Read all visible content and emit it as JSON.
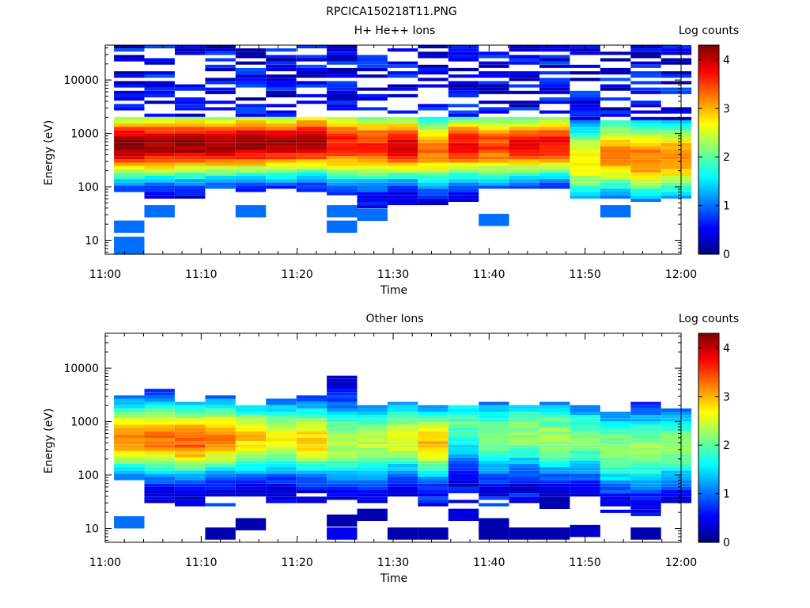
{
  "figure_title": "RPCICA150218T11.PNG",
  "chart_data": [
    {
      "type": "heatmap",
      "title": "H+ He++ Ions",
      "xlabel": "Time",
      "ylabel": "Energy (eV)",
      "colorbar_label": "Log counts",
      "colorbar_ticks": [
        "0",
        "1",
        "2",
        "3",
        "4"
      ],
      "colorbar_range": [
        0,
        4.3
      ],
      "colormap": "jet",
      "x_ticks": [
        "11:00",
        "11:10",
        "11:20",
        "11:30",
        "11:40",
        "11:50",
        "12:00"
      ],
      "xlim": [
        "11:00",
        "12:00"
      ],
      "y_ticks": [
        "10",
        "100",
        "1000",
        "10000"
      ],
      "ylim": [
        5.5,
        45000
      ],
      "y_scale": "log",
      "time_bins": [
        "11:02:30",
        "11:05:40",
        "11:08:50",
        "11:12:00",
        "11:15:10",
        "11:18:20",
        "11:21:30",
        "11:24:40",
        "11:27:50",
        "11:31:00",
        "11:34:10",
        "11:37:20",
        "11:40:30",
        "11:43:40",
        "11:46:50",
        "11:50:00",
        "11:53:10",
        "11:56:20",
        "11:59:30"
      ],
      "profiles": [
        {
          "peak_e": 600,
          "peak_log": 4.3,
          "width": 0.9,
          "hi_e": 1900,
          "lo_e": 75,
          "low_extra": [
            [
              18,
              1
            ],
            [
              7,
              1
            ],
            [
              9,
              1
            ]
          ]
        },
        {
          "peak_e": 600,
          "peak_log": 4.2,
          "width": 0.9,
          "hi_e": 1900,
          "lo_e": 50,
          "low_extra": [
            [
              35,
              1
            ]
          ]
        },
        {
          "peak_e": 620,
          "peak_log": 4.2,
          "width": 0.9,
          "hi_e": 1900,
          "lo_e": 60,
          "low_extra": []
        },
        {
          "peak_e": 620,
          "peak_log": 4.1,
          "width": 0.9,
          "hi_e": 1900,
          "lo_e": 90,
          "low_extra": []
        },
        {
          "peak_e": 650,
          "peak_log": 4.2,
          "width": 0.9,
          "hi_e": 1950,
          "lo_e": 80,
          "low_extra": [
            [
              35,
              1
            ]
          ]
        },
        {
          "peak_e": 650,
          "peak_log": 4.1,
          "width": 0.9,
          "hi_e": 1950,
          "lo_e": 95,
          "low_extra": []
        },
        {
          "peak_e": 700,
          "peak_log": 4.2,
          "width": 0.9,
          "hi_e": 2000,
          "lo_e": 75,
          "low_extra": []
        },
        {
          "peak_e": 650,
          "peak_log": 3.7,
          "width": 1.0,
          "hi_e": 2000,
          "lo_e": 70,
          "low_extra": [
            [
              35,
              1
            ],
            [
              18,
              1
            ]
          ]
        },
        {
          "peak_e": 600,
          "peak_log": 3.6,
          "width": 1.0,
          "hi_e": 2000,
          "lo_e": 40,
          "low_extra": [
            [
              30,
              1
            ]
          ]
        },
        {
          "peak_e": 600,
          "peak_log": 4.0,
          "width": 0.9,
          "hi_e": 2000,
          "lo_e": 45,
          "low_extra": []
        },
        {
          "peak_e": 500,
          "peak_log": 3.3,
          "width": 1.0,
          "hi_e": 2000,
          "lo_e": 45,
          "low_extra": []
        },
        {
          "peak_e": 600,
          "peak_log": 3.8,
          "width": 0.9,
          "hi_e": 2000,
          "lo_e": 55,
          "low_extra": []
        },
        {
          "peak_e": 600,
          "peak_log": 3.5,
          "width": 1.0,
          "hi_e": 2000,
          "lo_e": 90,
          "low_extra": [
            [
              24,
              1
            ]
          ]
        },
        {
          "peak_e": 600,
          "peak_log": 3.8,
          "width": 0.9,
          "hi_e": 2000,
          "lo_e": 95,
          "low_extra": []
        },
        {
          "peak_e": 650,
          "peak_log": 3.8,
          "width": 0.9,
          "hi_e": 2000,
          "lo_e": 95,
          "low_extra": []
        },
        {
          "peak_e": 300,
          "peak_log": 2.8,
          "width": 1.1,
          "hi_e": 1800,
          "lo_e": 60,
          "low_extra": []
        },
        {
          "peak_e": 400,
          "peak_log": 3.2,
          "width": 1.1,
          "hi_e": 1800,
          "lo_e": 60,
          "low_extra": [
            [
              35,
              1
            ]
          ]
        },
        {
          "peak_e": 350,
          "peak_log": 3.3,
          "width": 1.1,
          "hi_e": 1800,
          "lo_e": 55,
          "low_extra": []
        },
        {
          "peak_e": 350,
          "peak_log": 3.2,
          "width": 1.1,
          "hi_e": 1800,
          "lo_e": 60,
          "low_extra": []
        }
      ],
      "sparse_high": {
        "from_e": 2000,
        "to_e": 43000,
        "level": 0.6,
        "density": 0.55
      }
    },
    {
      "type": "heatmap",
      "title": "Other Ions",
      "xlabel": "Time",
      "ylabel": "Energy (eV)",
      "colorbar_label": "Log counts",
      "colorbar_ticks": [
        "0",
        "1",
        "2",
        "3",
        "4"
      ],
      "colorbar_range": [
        0,
        4.3
      ],
      "colormap": "jet",
      "x_ticks": [
        "11:00",
        "11:10",
        "11:20",
        "11:30",
        "11:40",
        "11:50",
        "12:00"
      ],
      "xlim": [
        "11:00",
        "12:00"
      ],
      "y_ticks": [
        "10",
        "100",
        "1000",
        "10000"
      ],
      "ylim": [
        5.5,
        45000
      ],
      "y_scale": "log",
      "time_bins": [
        "11:02:30",
        "11:05:40",
        "11:08:50",
        "11:12:00",
        "11:15:10",
        "11:18:20",
        "11:21:30",
        "11:24:40",
        "11:27:50",
        "11:31:00",
        "11:34:10",
        "11:37:20",
        "11:40:30",
        "11:43:40",
        "11:46:50",
        "11:50:00",
        "11:53:10",
        "11:56:20",
        "11:59:30"
      ],
      "profiles": [
        {
          "peak_e": 500,
          "peak_log": 3.2,
          "width": 1.0,
          "hi_e": 3200,
          "lo_e": 80,
          "low_extra": [
            [
              13,
              1.0
            ]
          ]
        },
        {
          "peak_e": 500,
          "peak_log": 3.3,
          "width": 1.0,
          "hi_e": 4300,
          "lo_e": 30,
          "low_extra": []
        },
        {
          "peak_e": 450,
          "peak_log": 3.4,
          "width": 1.0,
          "hi_e": 2400,
          "lo_e": 25,
          "low_extra": []
        },
        {
          "peak_e": 500,
          "peak_log": 3.2,
          "width": 1.0,
          "hi_e": 2900,
          "lo_e": 25,
          "low_extra": [
            [
              8,
              0.2
            ]
          ]
        },
        {
          "peak_e": 500,
          "peak_log": 2.9,
          "width": 1.0,
          "hi_e": 2000,
          "lo_e": 40,
          "low_extra": [
            [
              12,
              0.2
            ]
          ]
        },
        {
          "peak_e": 500,
          "peak_log": 2.7,
          "width": 1.0,
          "hi_e": 2700,
          "lo_e": 30,
          "low_extra": []
        },
        {
          "peak_e": 450,
          "peak_log": 2.9,
          "width": 1.0,
          "hi_e": 3300,
          "lo_e": 25,
          "low_extra": []
        },
        {
          "peak_e": 400,
          "peak_log": 2.4,
          "width": 1.1,
          "hi_e": 7200,
          "lo_e": 35,
          "low_extra": [
            [
              14,
              0.2
            ],
            [
              8,
              0.5
            ]
          ]
        },
        {
          "peak_e": 400,
          "peak_log": 2.4,
          "width": 1.1,
          "hi_e": 2000,
          "lo_e": 30,
          "low_extra": [
            [
              18,
              0.2
            ]
          ]
        },
        {
          "peak_e": 500,
          "peak_log": 2.6,
          "width": 1.0,
          "hi_e": 2500,
          "lo_e": 30,
          "low_extra": [
            [
              8,
              0.2
            ]
          ]
        },
        {
          "peak_e": 400,
          "peak_log": 2.9,
          "width": 1.0,
          "hi_e": 2000,
          "lo_e": 25,
          "low_extra": [
            [
              8,
              0.2
            ]
          ]
        },
        {
          "peak_e": 800,
          "peak_log": 2.0,
          "width": 1.1,
          "hi_e": 2000,
          "lo_e": 25,
          "low_extra": [
            [
              18,
              0.4
            ]
          ]
        },
        {
          "peak_e": 500,
          "peak_log": 2.2,
          "width": 1.1,
          "hi_e": 2400,
          "lo_e": 25,
          "low_extra": [
            [
              12,
              0.2
            ],
            [
              8,
              0.2
            ]
          ]
        },
        {
          "peak_e": 600,
          "peak_log": 2.2,
          "width": 1.1,
          "hi_e": 2000,
          "lo_e": 25,
          "low_extra": [
            [
              8,
              0.2
            ]
          ]
        },
        {
          "peak_e": 500,
          "peak_log": 2.3,
          "width": 1.1,
          "hi_e": 2400,
          "lo_e": 30,
          "low_extra": [
            [
              30,
              0.2
            ],
            [
              8,
              0.2
            ]
          ]
        },
        {
          "peak_e": 450,
          "peak_log": 2.1,
          "width": 1.1,
          "hi_e": 2000,
          "lo_e": 35,
          "low_extra": [
            [
              9,
              0.3
            ]
          ]
        },
        {
          "peak_e": 300,
          "peak_log": 2.3,
          "width": 1.1,
          "hi_e": 1600,
          "lo_e": 20,
          "low_extra": []
        },
        {
          "peak_e": 300,
          "peak_log": 2.3,
          "width": 1.1,
          "hi_e": 2300,
          "lo_e": 18,
          "low_extra": [
            [
              8,
              0.2
            ]
          ]
        },
        {
          "peak_e": 350,
          "peak_log": 2.2,
          "width": 1.1,
          "hi_e": 1800,
          "lo_e": 25,
          "low_extra": []
        }
      ],
      "sparse_high": null
    }
  ]
}
